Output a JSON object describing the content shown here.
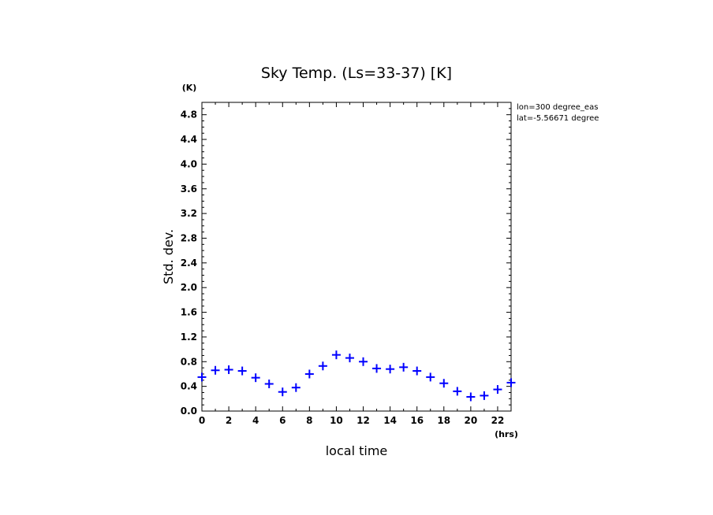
{
  "chart_data": {
    "type": "scatter",
    "title": "Sky Temp. (Ls=33-37) [K]",
    "xlabel": "local time",
    "ylabel": "Std. dev.",
    "x_unit": "(hrs)",
    "y_unit": "(K)",
    "xlim": [
      0,
      23
    ],
    "ylim": [
      0,
      5.0
    ],
    "x_ticks": [
      0,
      2,
      4,
      6,
      8,
      10,
      12,
      14,
      16,
      18,
      20,
      22
    ],
    "y_ticks": [
      0.0,
      0.4,
      0.8,
      1.2,
      1.6,
      2.0,
      2.4,
      2.8,
      3.2,
      3.6,
      4.0,
      4.4,
      4.8
    ],
    "y_tick_labels": [
      "0.0",
      "0.4",
      "0.8",
      "1.2",
      "1.6",
      "2.0",
      "2.4",
      "2.8",
      "3.2",
      "3.6",
      "4.0",
      "4.4",
      "4.8"
    ],
    "marker": "plus",
    "marker_color": "#0000ff",
    "grid": false,
    "annotations": [
      "lon=300 degree_eas",
      "lat=-5.56671 degree"
    ],
    "series": [
      {
        "x": [
          0,
          1,
          2,
          3,
          4,
          5,
          6,
          7,
          8,
          9,
          10,
          11,
          12,
          13,
          14,
          15,
          16,
          17,
          18,
          19,
          20,
          21,
          22,
          23
        ],
        "values": [
          0.55,
          0.66,
          0.67,
          0.65,
          0.54,
          0.44,
          0.31,
          0.38,
          0.6,
          0.73,
          0.91,
          0.86,
          0.8,
          0.69,
          0.68,
          0.71,
          0.65,
          0.55,
          0.45,
          0.32,
          0.23,
          0.25,
          0.35,
          0.46
        ]
      }
    ]
  }
}
